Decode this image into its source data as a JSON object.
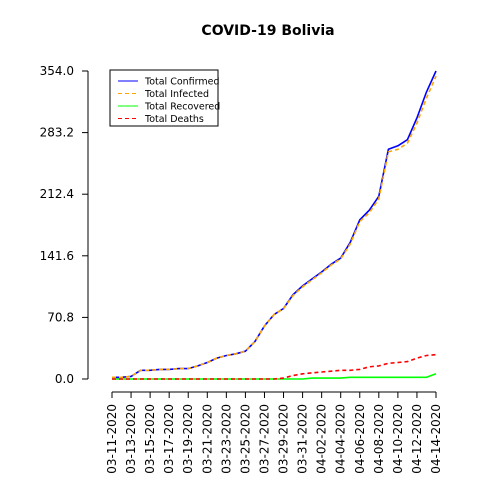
{
  "chart_data": {
    "type": "line",
    "title": "COVID-19 Bolivia",
    "xlabel": "",
    "ylabel": "",
    "grid": false,
    "legend_position": "top-left",
    "y_ticks": [
      0.0,
      70.8,
      141.6,
      212.4,
      283.2,
      354.0
    ],
    "y_tick_labels": [
      "0.0",
      "70.8",
      "141.6",
      "212.4",
      "283.2",
      "354.0"
    ],
    "ylim": [
      0,
      354
    ],
    "x_tick_labels": [
      "03-11-2020",
      "03-13-2020",
      "03-15-2020",
      "03-17-2020",
      "03-19-2020",
      "03-21-2020",
      "03-23-2020",
      "03-25-2020",
      "03-27-2020",
      "03-29-2020",
      "03-31-2020",
      "04-02-2020",
      "04-04-2020",
      "04-06-2020",
      "04-08-2020",
      "04-10-2020",
      "04-12-2020",
      "04-14-2020"
    ],
    "x": [
      "03-11-2020",
      "03-12-2020",
      "03-13-2020",
      "03-14-2020",
      "03-15-2020",
      "03-16-2020",
      "03-17-2020",
      "03-18-2020",
      "03-19-2020",
      "03-20-2020",
      "03-21-2020",
      "03-22-2020",
      "03-23-2020",
      "03-24-2020",
      "03-25-2020",
      "03-26-2020",
      "03-27-2020",
      "03-28-2020",
      "03-29-2020",
      "03-30-2020",
      "03-31-2020",
      "04-01-2020",
      "04-02-2020",
      "04-03-2020",
      "04-04-2020",
      "04-05-2020",
      "04-06-2020",
      "04-07-2020",
      "04-08-2020",
      "04-09-2020",
      "04-10-2020",
      "04-11-2020",
      "04-12-2020",
      "04-13-2020",
      "04-14-2020"
    ],
    "series": [
      {
        "name": "Total Confirmed",
        "color": "#0000ff",
        "dash": "solid",
        "values": [
          2,
          2,
          3,
          10,
          10,
          11,
          11,
          12,
          12,
          15,
          19,
          24,
          27,
          29,
          32,
          43,
          61,
          74,
          81,
          97,
          107,
          115,
          123,
          132,
          139,
          157,
          183,
          194,
          210,
          264,
          268,
          275,
          300,
          330,
          354
        ]
      },
      {
        "name": "Total Infected",
        "color": "#ffa500",
        "dash": "dashed",
        "values": [
          2,
          2,
          3,
          10,
          10,
          11,
          11,
          12,
          12,
          15,
          19,
          24,
          27,
          29,
          32,
          43,
          61,
          74,
          81,
          96,
          106,
          114,
          122,
          131,
          138,
          155,
          181,
          191,
          207,
          261,
          264,
          271,
          294,
          323,
          348
        ]
      },
      {
        "name": "Total Recovered",
        "color": "#00ff00",
        "dash": "solid",
        "values": [
          0,
          0,
          0,
          0,
          0,
          0,
          0,
          0,
          0,
          0,
          0,
          0,
          0,
          0,
          0,
          0,
          0,
          0,
          0,
          0,
          0,
          1,
          1,
          1,
          1,
          2,
          2,
          2,
          2,
          2,
          2,
          2,
          2,
          2,
          6
        ]
      },
      {
        "name": "Total Deaths",
        "color": "#ff0000",
        "dash": "dashed",
        "values": [
          0,
          0,
          0,
          0,
          0,
          0,
          0,
          0,
          0,
          0,
          0,
          0,
          0,
          0,
          0,
          0,
          0,
          0,
          1,
          4,
          6,
          7,
          8,
          9,
          10,
          10,
          11,
          14,
          15,
          18,
          19,
          20,
          24,
          27,
          28
        ]
      }
    ]
  }
}
